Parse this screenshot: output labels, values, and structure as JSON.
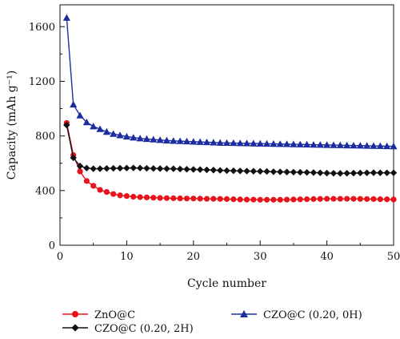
{
  "chart_data": {
    "type": "line",
    "xlabel": "Cycle number",
    "ylabel": "Capacity (mAh g⁻¹)",
    "xlim": [
      0,
      50
    ],
    "ylim": [
      0,
      1760
    ],
    "xticks": [
      0,
      10,
      20,
      30,
      40,
      50
    ],
    "yticks": [
      0,
      400,
      800,
      1200,
      1600
    ],
    "grid": false,
    "legend_position": "bottom",
    "series": [
      {
        "name": "ZnO@C",
        "color": "#e8141b",
        "marker": "circle",
        "x": [
          1,
          2,
          3,
          4,
          5,
          6,
          7,
          8,
          9,
          10,
          11,
          12,
          13,
          14,
          15,
          16,
          17,
          18,
          19,
          20,
          21,
          22,
          23,
          24,
          25,
          26,
          27,
          28,
          29,
          30,
          31,
          32,
          33,
          34,
          35,
          36,
          37,
          38,
          39,
          40,
          41,
          42,
          43,
          44,
          45,
          46,
          47,
          48,
          49,
          50
        ],
        "values": [
          895,
          660,
          540,
          470,
          435,
          405,
          390,
          375,
          365,
          360,
          355,
          352,
          350,
          348,
          346,
          345,
          344,
          343,
          342,
          342,
          341,
          340,
          340,
          339,
          338,
          337,
          335,
          334,
          334,
          333,
          333,
          333,
          333,
          334,
          335,
          336,
          337,
          338,
          339,
          340,
          340,
          340,
          340,
          340,
          339,
          338,
          338,
          337,
          336,
          335
        ]
      },
      {
        "name": "CZO@C (0.20, 2H)",
        "color": "#111111",
        "marker": "diamond",
        "x": [
          1,
          2,
          3,
          4,
          5,
          6,
          7,
          8,
          9,
          10,
          11,
          12,
          13,
          14,
          15,
          16,
          17,
          18,
          19,
          20,
          21,
          22,
          23,
          24,
          25,
          26,
          27,
          28,
          29,
          30,
          31,
          32,
          33,
          34,
          35,
          36,
          37,
          38,
          39,
          40,
          41,
          42,
          43,
          44,
          45,
          46,
          47,
          48,
          49,
          50
        ],
        "values": [
          880,
          640,
          580,
          565,
          560,
          560,
          562,
          563,
          564,
          565,
          566,
          565,
          563,
          562,
          561,
          560,
          560,
          558,
          556,
          555,
          554,
          552,
          550,
          548,
          546,
          545,
          544,
          543,
          542,
          541,
          540,
          538,
          537,
          536,
          535,
          534,
          533,
          532,
          530,
          528,
          527,
          526,
          527,
          528,
          529,
          530,
          531,
          530,
          530,
          530
        ]
      },
      {
        "name": "CZO@C (0.20, 0H)",
        "color": "#1c2da0",
        "marker": "triangle",
        "x": [
          1,
          2,
          3,
          4,
          5,
          6,
          7,
          8,
          9,
          10,
          11,
          12,
          13,
          14,
          15,
          16,
          17,
          18,
          19,
          20,
          21,
          22,
          23,
          24,
          25,
          26,
          27,
          28,
          29,
          30,
          31,
          32,
          33,
          34,
          35,
          36,
          37,
          38,
          39,
          40,
          41,
          42,
          43,
          44,
          45,
          46,
          47,
          48,
          49,
          50
        ],
        "values": [
          1665,
          1030,
          950,
          900,
          870,
          850,
          830,
          815,
          805,
          795,
          788,
          782,
          778,
          774,
          770,
          767,
          764,
          762,
          760,
          758,
          756,
          754,
          752,
          750,
          749,
          748,
          747,
          746,
          745,
          744,
          743,
          742,
          741,
          740,
          739,
          738,
          737,
          736,
          735,
          734,
          733,
          732,
          731,
          730,
          729,
          728,
          727,
          726,
          725,
          724
        ]
      }
    ]
  }
}
